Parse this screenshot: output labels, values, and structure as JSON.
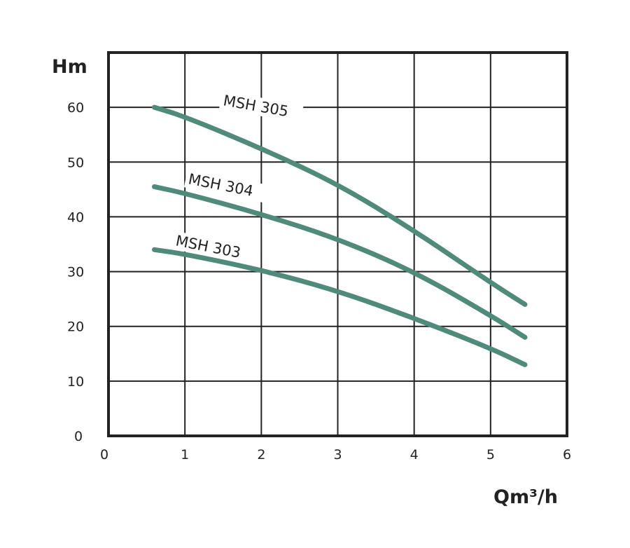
{
  "chart_data": {
    "type": "line",
    "title": "",
    "xlabel": "Qm³/h",
    "ylabel": "Hm",
    "xlim": [
      0,
      6
    ],
    "ylim": [
      0,
      70
    ],
    "grid": true,
    "x_ticks": [
      "0",
      "1",
      "2",
      "3",
      "4",
      "5",
      "6"
    ],
    "y_ticks": [
      "0",
      "10",
      "20",
      "30",
      "40",
      "50",
      "60"
    ],
    "line_color": "#4f8a7a",
    "series": [
      {
        "name": "MSH 305",
        "x": [
          0.6,
          1,
          2,
          3,
          4,
          5,
          5.45
        ],
        "y": [
          60,
          58.3,
          52.5,
          46,
          37.5,
          28,
          24
        ]
      },
      {
        "name": "MSH 304",
        "x": [
          0.6,
          1,
          2,
          3,
          4,
          5,
          5.45
        ],
        "y": [
          45.5,
          44.3,
          40.5,
          36,
          30,
          22,
          18
        ]
      },
      {
        "name": "MSH 303",
        "x": [
          0.6,
          1,
          2,
          3,
          4,
          5,
          5.45
        ],
        "y": [
          34,
          33.2,
          30.3,
          26.5,
          21.5,
          16,
          13
        ]
      }
    ]
  }
}
